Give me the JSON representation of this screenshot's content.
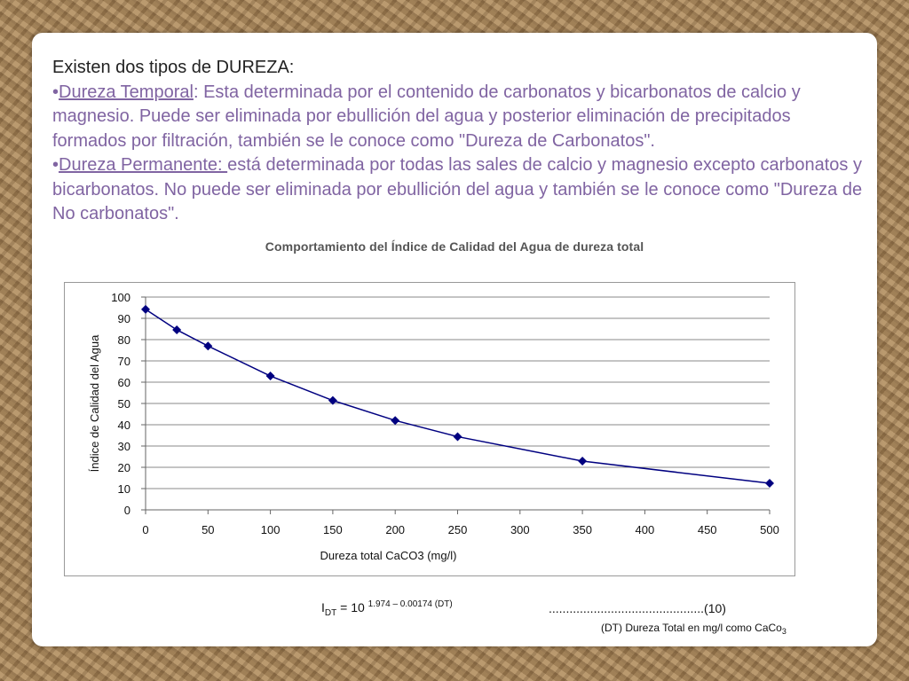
{
  "content": {
    "heading": "Existen dos tipos de DUREZA:",
    "temporal": {
      "bullet": "•",
      "term": "Dureza Temporal",
      "text": ": Esta determinada por el contenido de carbonatos y bicarbonatos de calcio y magnesio. Puede ser eliminada por ebullición del agua y posterior eliminación de precipitados formados por filtración, también se le conoce como \"Dureza de Carbonatos\"."
    },
    "permanente": {
      "bullet": "•",
      "term": "Dureza Permanente: ",
      "text": "está determinada por todas las sales de calcio y magnesio excepto carbonatos y bicarbonatos. No puede ser eliminada por ebullición del agua y también se le conoce como \"Dureza de No carbonatos\"."
    }
  },
  "chart_data": {
    "type": "line",
    "title": "Comportamiento del Índice de Calidad del Agua de dureza total",
    "xlabel": "Dureza total CaCO3 (mg/l)",
    "ylabel": "Índice de Calidad del Agua",
    "xlim": [
      0,
      500
    ],
    "ylim": [
      0,
      100
    ],
    "x_ticks": [
      0,
      50,
      100,
      150,
      200,
      250,
      300,
      350,
      400,
      450,
      500
    ],
    "y_ticks": [
      0,
      10,
      20,
      30,
      40,
      50,
      60,
      70,
      80,
      90,
      100
    ],
    "grid": "horizontal",
    "legend": "none",
    "series": [
      {
        "color": "#000080",
        "marker": "diamond",
        "x": [
          0,
          25,
          50,
          100,
          150,
          200,
          250,
          350,
          500
        ],
        "y": [
          94.2,
          84.6,
          77.0,
          62.9,
          51.4,
          42.0,
          34.4,
          22.9,
          12.5
        ]
      }
    ]
  },
  "formula": {
    "main": "I",
    "sub": "DT",
    "equals": " = 10 ",
    "exponent": "1.974 – 0.00174 (DT)",
    "ref": ".............................................(10)",
    "note_prefix": "(DT) Dureza Total en mg/l como CaCo",
    "note_sub": "3"
  },
  "colors": {
    "accent_purple": "#8064a2",
    "series_color": "#000080",
    "slide_bg": "#ffffff"
  }
}
